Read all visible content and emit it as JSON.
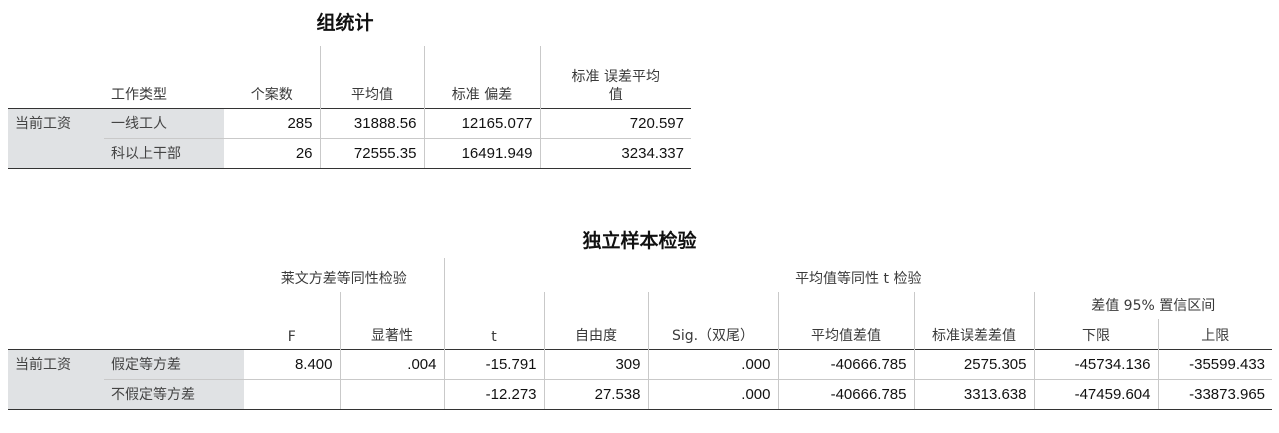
{
  "group_stats": {
    "title": "组统计",
    "headers": {
      "work_type": "工作类型",
      "n": "个案数",
      "mean": "平均值",
      "sd": "标准 偏差",
      "se_line1": "标准 误差平均",
      "se_line2": "值"
    },
    "row_var": "当前工资",
    "rows": [
      {
        "group": "一线工人",
        "n": "285",
        "mean": "31888.56",
        "sd": "12165.077",
        "se": "720.597"
      },
      {
        "group": "科以上干部",
        "n": "26",
        "mean": "72555.35",
        "sd": "16491.949",
        "se": "3234.337"
      }
    ]
  },
  "ind_test": {
    "title": "独立样本检验",
    "levene_header": "莱文方差等同性检验",
    "ttest_header": "平均值等同性 t 检验",
    "ci_header": "差值 95% 置信区间",
    "headers": {
      "F": "F",
      "sig": "显著性",
      "t": "t",
      "df": "自由度",
      "sig2": "Sig.（双尾）",
      "mean_diff": "平均值差值",
      "se_diff": "标准误差差值",
      "lower": "下限",
      "upper": "上限"
    },
    "row_var": "当前工资",
    "rows": [
      {
        "label": "假定等方差",
        "F": "8.400",
        "sig": ".004",
        "t": "-15.791",
        "df": "309",
        "sig2": ".000",
        "mean_diff": "-40666.785",
        "se_diff": "2575.305",
        "lower": "-45734.136",
        "upper": "-35599.433"
      },
      {
        "label": "不假定等方差",
        "F": "",
        "sig": "",
        "t": "-12.273",
        "df": "27.538",
        "sig2": ".000",
        "mean_diff": "-40666.785",
        "se_diff": "3313.638",
        "lower": "-47459.604",
        "upper": "-33873.965"
      }
    ]
  }
}
